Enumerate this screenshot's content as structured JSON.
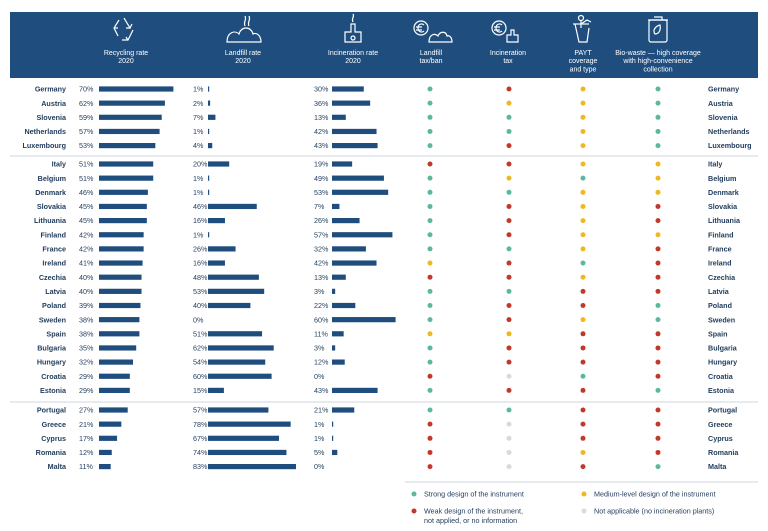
{
  "chart_data": {
    "type": "table",
    "columns": [
      {
        "key": "recycling",
        "label": [
          "Recycling rate",
          "2020"
        ],
        "icon": "recycling-icon",
        "kind": "bar",
        "unit": "%"
      },
      {
        "key": "landfill",
        "label": [
          "Landfill rate",
          "2020"
        ],
        "icon": "landfill-icon",
        "kind": "bar",
        "unit": "%"
      },
      {
        "key": "incineration",
        "label": [
          "Incineration rate",
          "2020"
        ],
        "icon": "incineration-plant-icon",
        "kind": "bar",
        "unit": "%"
      },
      {
        "key": "landfill_tax",
        "label": [
          "Landfill",
          "tax/ban"
        ],
        "icon": "landfill-tax-icon",
        "kind": "rating"
      },
      {
        "key": "incineration_tax",
        "label": [
          "Incineration",
          "tax"
        ],
        "icon": "incineration-tax-icon",
        "kind": "rating"
      },
      {
        "key": "payt",
        "label": [
          "PAYT",
          "coverage",
          "and type"
        ],
        "icon": "payt-bin-icon",
        "kind": "rating"
      },
      {
        "key": "biowaste",
        "label": [
          "Bio-waste — high coverage",
          "with high-convenience",
          "collection"
        ],
        "icon": "biowaste-bin-icon",
        "kind": "rating"
      }
    ],
    "groups": [
      {
        "rows": [
          {
            "country": "Germany",
            "recycling": 70,
            "landfill": 1,
            "incineration": 30,
            "ratings": [
              "G",
              "R",
              "Y",
              "G"
            ]
          },
          {
            "country": "Austria",
            "recycling": 62,
            "landfill": 2,
            "incineration": 36,
            "ratings": [
              "G",
              "Y",
              "Y",
              "G"
            ]
          },
          {
            "country": "Slovenia",
            "recycling": 59,
            "landfill": 7,
            "incineration": 13,
            "ratings": [
              "G",
              "G",
              "Y",
              "G"
            ]
          },
          {
            "country": "Netherlands",
            "recycling": 57,
            "landfill": 1,
            "incineration": 42,
            "ratings": [
              "G",
              "G",
              "Y",
              "G"
            ]
          },
          {
            "country": "Luxembourg",
            "recycling": 53,
            "landfill": 4,
            "incineration": 43,
            "ratings": [
              "G",
              "R",
              "Y",
              "G"
            ]
          }
        ]
      },
      {
        "rows": [
          {
            "country": "Italy",
            "recycling": 51,
            "landfill": 20,
            "incineration": 19,
            "ratings": [
              "R",
              "R",
              "Y",
              "Y"
            ]
          },
          {
            "country": "Belgium",
            "recycling": 51,
            "landfill": 1,
            "incineration": 49,
            "ratings": [
              "G",
              "Y",
              "G",
              "Y"
            ]
          },
          {
            "country": "Denmark",
            "recycling": 46,
            "landfill": 1,
            "incineration": 53,
            "ratings": [
              "G",
              "G",
              "Y",
              "Y"
            ]
          },
          {
            "country": "Slovakia",
            "recycling": 45,
            "landfill": 46,
            "incineration": 7,
            "ratings": [
              "G",
              "R",
              "Y",
              "R"
            ]
          },
          {
            "country": "Lithuania",
            "recycling": 45,
            "landfill": 16,
            "incineration": 26,
            "ratings": [
              "G",
              "R",
              "Y",
              "R"
            ]
          },
          {
            "country": "Finland",
            "recycling": 42,
            "landfill": 1,
            "incineration": 57,
            "ratings": [
              "G",
              "R",
              "Y",
              "Y"
            ]
          },
          {
            "country": "France",
            "recycling": 42,
            "landfill": 26,
            "incineration": 32,
            "ratings": [
              "G",
              "G",
              "Y",
              "R"
            ]
          },
          {
            "country": "Ireland",
            "recycling": 41,
            "landfill": 16,
            "incineration": 42,
            "ratings": [
              "Y",
              "R",
              "G",
              "R"
            ]
          },
          {
            "country": "Czechia",
            "recycling": 40,
            "landfill": 48,
            "incineration": 13,
            "ratings": [
              "R",
              "R",
              "Y",
              "R"
            ]
          },
          {
            "country": "Latvia",
            "recycling": 40,
            "landfill": 53,
            "incineration": 3,
            "ratings": [
              "G",
              "G",
              "R",
              "R"
            ]
          },
          {
            "country": "Poland",
            "recycling": 39,
            "landfill": 40,
            "incineration": 22,
            "ratings": [
              "G",
              "R",
              "R",
              "G"
            ]
          },
          {
            "country": "Sweden",
            "recycling": 38,
            "landfill": 0,
            "incineration": 60,
            "ratings": [
              "G",
              "R",
              "Y",
              "G"
            ]
          },
          {
            "country": "Spain",
            "recycling": 38,
            "landfill": 51,
            "incineration": 11,
            "ratings": [
              "Y",
              "Y",
              "R",
              "R"
            ]
          },
          {
            "country": "Bulgaria",
            "recycling": 35,
            "landfill": 62,
            "incineration": 3,
            "ratings": [
              "G",
              "R",
              "R",
              "R"
            ]
          },
          {
            "country": "Hungary",
            "recycling": 32,
            "landfill": 54,
            "incineration": 12,
            "ratings": [
              "G",
              "R",
              "R",
              "R"
            ]
          },
          {
            "country": "Croatia",
            "recycling": 29,
            "landfill": 60,
            "incineration": 0,
            "ratings": [
              "R",
              "N",
              "G",
              "R"
            ]
          },
          {
            "country": "Estonia",
            "recycling": 29,
            "landfill": 15,
            "incineration": 43,
            "ratings": [
              "G",
              "R",
              "R",
              "G"
            ]
          }
        ]
      },
      {
        "rows": [
          {
            "country": "Portugal",
            "recycling": 27,
            "landfill": 57,
            "incineration": 21,
            "ratings": [
              "G",
              "G",
              "R",
              "R"
            ]
          },
          {
            "country": "Greece",
            "recycling": 21,
            "landfill": 78,
            "incineration": 1,
            "ratings": [
              "R",
              "N",
              "R",
              "R"
            ]
          },
          {
            "country": "Cyprus",
            "recycling": 17,
            "landfill": 67,
            "incineration": 1,
            "ratings": [
              "R",
              "N",
              "R",
              "R"
            ]
          },
          {
            "country": "Romania",
            "recycling": 12,
            "landfill": 74,
            "incineration": 5,
            "ratings": [
              "R",
              "N",
              "Y",
              "R"
            ]
          },
          {
            "country": "Malta",
            "recycling": 11,
            "landfill": 83,
            "incineration": 0,
            "ratings": [
              "R",
              "N",
              "R",
              "G"
            ]
          }
        ]
      }
    ],
    "legend": [
      {
        "code": "G",
        "color": "#5bb8a0",
        "label": [
          "Strong design of the instrument"
        ]
      },
      {
        "code": "Y",
        "color": "#f0b820",
        "label": [
          "Medium-level design of the instrument"
        ]
      },
      {
        "code": "R",
        "color": "#c0392b",
        "label": [
          "Weak design of the instrument,",
          "not applied, or no information"
        ]
      },
      {
        "code": "N",
        "color": "#dadada",
        "label": [
          "Not applicable (no incineration plants)"
        ]
      }
    ],
    "colors": {
      "header": "#1f4e7e",
      "bar": "#1f4e7e",
      "text": "#1f3b5c",
      "separator": "#bfc7d1"
    }
  }
}
